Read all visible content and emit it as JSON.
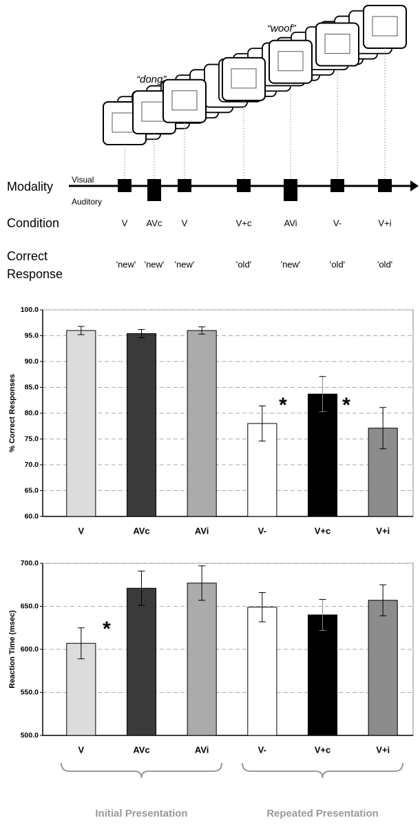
{
  "diagram": {
    "sounds": [
      "“dong”",
      "“woof”"
    ],
    "modality_label": "Modality",
    "visual": "Visual",
    "auditory": "Auditory",
    "condition_label": "Condition",
    "response_label": [
      "Correct",
      "Response"
    ],
    "trials": [
      {
        "condition": "V",
        "response": "'new'"
      },
      {
        "condition": "AVc",
        "response": "'new'"
      },
      {
        "condition": "V",
        "response": "'new'"
      },
      {
        "condition": "V+c",
        "response": "'old'"
      },
      {
        "condition": "AVi",
        "response": "'new'"
      },
      {
        "condition": "V-",
        "response": "'old'"
      },
      {
        "condition": "V+i",
        "response": "'old'"
      }
    ]
  },
  "chart_data": [
    {
      "type": "bar",
      "y_label": "% Correct Responses",
      "categories": [
        "V",
        "AVc",
        "AVi",
        "V-",
        "V+c",
        "V+i"
      ],
      "values": [
        96.0,
        95.4,
        96.0,
        78.0,
        83.7,
        77.1
      ],
      "errors": [
        0.8,
        0.8,
        0.7,
        3.4,
        3.4,
        4.0
      ],
      "colors": [
        "#dcdcdc",
        "#3a3a3a",
        "#ababab",
        "#ffffff",
        "#000000",
        "#8c8c8c"
      ],
      "ylim": [
        60,
        100
      ],
      "yticks": [
        {
          "value": 60,
          "label": "60.0"
        },
        {
          "value": 65,
          "label": "65.0"
        },
        {
          "value": 70,
          "label": "70.0"
        },
        {
          "value": 75,
          "label": "75.0"
        },
        {
          "value": 80,
          "label": "80.0"
        },
        {
          "value": 85,
          "label": "85.0"
        },
        {
          "value": 90,
          "label": "90.0"
        },
        {
          "value": 95,
          "label": "95.0"
        },
        {
          "value": 100,
          "label": "100.0"
        }
      ],
      "grid": true,
      "annotations": [
        "*",
        "*"
      ]
    },
    {
      "type": "bar",
      "y_label": "Reaction Time (msec)",
      "categories": [
        "V",
        "AVc",
        "AVi",
        "V-",
        "V+c",
        "V+i"
      ],
      "values": [
        607,
        671,
        677,
        649,
        640,
        657
      ],
      "errors": [
        18,
        20,
        20,
        17,
        18,
        18
      ],
      "colors": [
        "#dcdcdc",
        "#3a3a3a",
        "#ababab",
        "#ffffff",
        "#000000",
        "#8c8c8c"
      ],
      "ylim": [
        500,
        700
      ],
      "yticks": [
        {
          "value": 500,
          "label": "500.0"
        },
        {
          "value": 550,
          "label": "550.0"
        },
        {
          "value": 600,
          "label": "600.0"
        },
        {
          "value": 650,
          "label": "650.0"
        },
        {
          "value": 700,
          "label": "700.0"
        }
      ],
      "grid": true,
      "annotations": [
        "*"
      ],
      "groups": [
        "Initial Presentation",
        "Repeated Presentation"
      ]
    }
  ]
}
